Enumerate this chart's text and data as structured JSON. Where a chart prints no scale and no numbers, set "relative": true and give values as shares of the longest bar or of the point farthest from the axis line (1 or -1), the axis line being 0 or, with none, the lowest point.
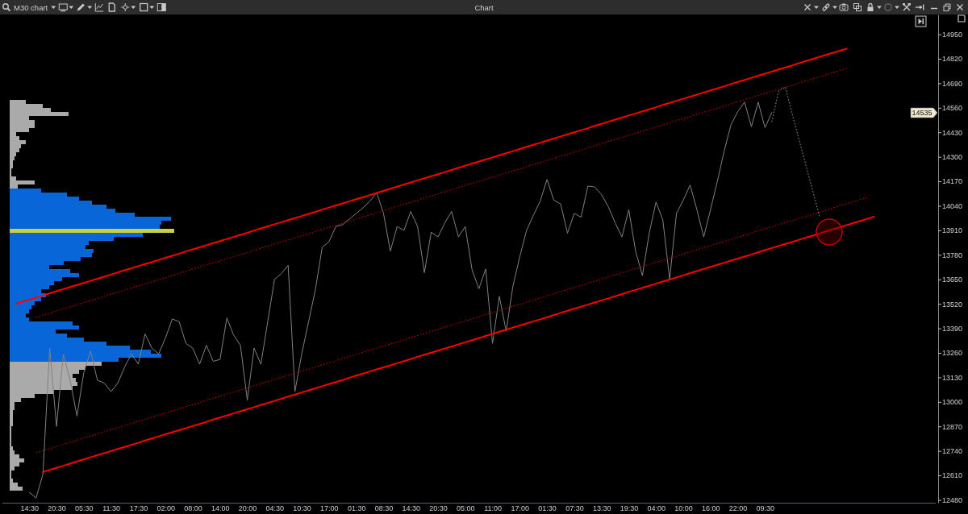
{
  "chart_data": [
    {
      "type": "line",
      "title": "Chart",
      "subtitle": "M30 chart",
      "categories": [
        null,
        null,
        null,
        null,
        "14:30",
        null,
        null,
        null,
        "20:30",
        null,
        null,
        null,
        "05:30",
        null,
        null,
        null,
        "11:30",
        null,
        null,
        null,
        "17:30",
        null,
        null,
        null,
        "02:00",
        null,
        null,
        null,
        "08:00",
        null,
        null,
        null,
        "14:00",
        null,
        null,
        null,
        "20:00",
        null,
        null,
        null,
        "04:30",
        null,
        null,
        null,
        "10:30",
        null,
        null,
        null,
        "17:00",
        null,
        null,
        null,
        "01:30",
        null,
        null,
        null,
        "08:30",
        null,
        null,
        null,
        "14:30",
        null,
        null,
        null,
        "20:30",
        null,
        null,
        null,
        "05:00",
        null,
        null,
        null,
        "11:00",
        null,
        null,
        null,
        "17:00",
        null,
        null,
        null,
        "01:30",
        null,
        null,
        null,
        "07:30",
        null,
        null,
        null,
        "13:30",
        null,
        null,
        null,
        "19:30",
        null,
        null,
        null,
        "04:00",
        null,
        null,
        null,
        "10:00",
        null,
        null,
        null,
        "16:00",
        null,
        null,
        null,
        "22:00",
        null,
        null,
        null,
        "09:30",
        null,
        null,
        null,
        null,
        null,
        null,
        null,
        null,
        null,
        null,
        null,
        null,
        null,
        null,
        null,
        null,
        null,
        null,
        null,
        null,
        null,
        null,
        null,
        null,
        null
      ],
      "ylim": [
        12465,
        15055
      ],
      "yticks": [
        12480,
        12610,
        12740,
        12870,
        13000,
        13130,
        13260,
        13390,
        13520,
        13650,
        13780,
        13910,
        14040,
        14170,
        14300,
        14430,
        14560,
        14690,
        14820,
        14950
      ],
      "series": [
        {
          "color": "#808080",
          "values": [
            null,
            null,
            null,
            null,
            12520,
            12490,
            12615,
            13285,
            12870,
            13255,
            13115,
            12925,
            13155,
            13270,
            13115,
            13100,
            13055,
            13100,
            13185,
            13255,
            13200,
            13360,
            13285,
            13255,
            13340,
            13440,
            13425,
            13310,
            13285,
            13200,
            13300,
            13215,
            13225,
            13445,
            13355,
            13300,
            13010,
            13285,
            13200,
            13425,
            13650,
            13680,
            13725,
            13055,
            13255,
            13425,
            13595,
            13820,
            13850,
            13930,
            13940,
            13970,
            14000,
            14030,
            14065,
            14110,
            14000,
            13800,
            13930,
            13910,
            14010,
            13930,
            13685,
            13900,
            13875,
            13950,
            14010,
            13875,
            13930,
            13700,
            13600,
            13705,
            13310,
            13560,
            13375,
            13615,
            13770,
            13910,
            13990,
            14065,
            14180,
            14070,
            14050,
            13895,
            14000,
            13980,
            14145,
            14140,
            14100,
            14035,
            13950,
            13875,
            14020,
            13800,
            13670,
            13895,
            14060,
            13965,
            13650,
            14000,
            14070,
            14150,
            14020,
            13875,
            14020,
            14170,
            14330,
            14470,
            14540,
            14590,
            14460,
            14590,
            14455,
            14535,
            null,
            null,
            null,
            null,
            null,
            null,
            null,
            null,
            null,
            null,
            null,
            null,
            null,
            null,
            null,
            null,
            null,
            null,
            null,
            null,
            null,
            null,
            null,
            null
          ]
        },
        {
          "color": "#ff0000",
          "line_style": "solid",
          "values": [
            null,
            null,
            13520,
            13531,
            13542,
            13553,
            13564,
            13576,
            13587,
            13598,
            13609,
            13620,
            13631,
            13642,
            13653,
            13664,
            13675,
            13687,
            13698,
            13709,
            13720,
            13731,
            13742,
            13753,
            13764,
            13775,
            13786,
            13798,
            13809,
            13820,
            13831,
            13842,
            13853,
            13864,
            13875,
            13886,
            13897,
            13909,
            13920,
            13931,
            13942,
            13953,
            13964,
            13975,
            13986,
            13997,
            14008,
            14020,
            14031,
            14042,
            14053,
            14064,
            14075,
            14086,
            14097,
            14108,
            14119,
            14131,
            14142,
            14153,
            14164,
            14175,
            14186,
            14197,
            14208,
            14219,
            14230,
            14242,
            14253,
            14264,
            14275,
            14286,
            14297,
            14308,
            14319,
            14330,
            14341,
            14353,
            14364,
            14375,
            14386,
            14397,
            14408,
            14419,
            14430,
            14441,
            14452,
            14464,
            14475,
            14486,
            14497,
            14508,
            14519,
            14530,
            14541,
            14552,
            14563,
            14575,
            14586,
            14597,
            14608,
            14619,
            14630,
            14641,
            14652,
            14663,
            14674,
            14686,
            14697,
            14708,
            14719,
            14730,
            14741,
            14752,
            14763,
            14774,
            14785,
            14797,
            14808,
            14819,
            14830,
            14841,
            14852,
            14863,
            14874,
            null,
            null,
            null,
            null,
            null,
            null,
            null,
            null,
            null,
            null,
            null,
            null,
            null
          ]
        },
        {
          "color": "#c00000",
          "line_style": "dotted",
          "values": [
            null,
            null,
            null,
            null,
            null,
            13448,
            13459,
            13471,
            13482,
            13493,
            13504,
            13515,
            13526,
            13537,
            13548,
            13559,
            13570,
            13582,
            13593,
            13604,
            13615,
            13626,
            13637,
            13648,
            13659,
            13670,
            13681,
            13693,
            13704,
            13715,
            13726,
            13737,
            13748,
            13759,
            13770,
            13781,
            13792,
            13804,
            13815,
            13826,
            13837,
            13848,
            13859,
            13870,
            13881,
            13892,
            13903,
            13915,
            13926,
            13937,
            13948,
            13959,
            13970,
            13981,
            13992,
            14003,
            14014,
            14026,
            14037,
            14048,
            14059,
            14070,
            14081,
            14092,
            14103,
            14114,
            14125,
            14137,
            14148,
            14159,
            14170,
            14181,
            14192,
            14203,
            14214,
            14225,
            14236,
            14248,
            14259,
            14270,
            14281,
            14292,
            14303,
            14314,
            14325,
            14336,
            14347,
            14359,
            14370,
            14381,
            14392,
            14403,
            14414,
            14425,
            14436,
            14447,
            14458,
            14470,
            14481,
            14492,
            14503,
            14514,
            14525,
            14536,
            14547,
            14558,
            14569,
            14581,
            14592,
            14603,
            14614,
            14625,
            14636,
            14647,
            14658,
            14669,
            14680,
            14692,
            14703,
            14714,
            14725,
            14736,
            14747,
            14758,
            14769,
            null,
            null,
            null,
            null,
            null,
            null,
            null,
            null,
            null,
            null,
            null,
            null,
            null
          ]
        },
        {
          "color": "#c00000",
          "line_style": "dotted",
          "values": [
            null,
            null,
            null,
            null,
            null,
            12730,
            12741,
            12752,
            12763,
            12774,
            12786,
            12797,
            12808,
            12819,
            12830,
            12841,
            12852,
            12863,
            12874,
            12885,
            12897,
            12908,
            12919,
            12930,
            12941,
            12952,
            12963,
            12974,
            12985,
            12996,
            13008,
            13019,
            13030,
            13041,
            13052,
            13063,
            13074,
            13085,
            13096,
            13107,
            13119,
            13130,
            13141,
            13152,
            13163,
            13174,
            13185,
            13196,
            13207,
            13218,
            13230,
            13241,
            13252,
            13263,
            13274,
            13285,
            13296,
            13307,
            13318,
            13329,
            13341,
            13352,
            13363,
            13374,
            13385,
            13396,
            13407,
            13418,
            13429,
            13440,
            13452,
            13463,
            13474,
            13485,
            13496,
            13507,
            13518,
            13529,
            13540,
            13551,
            13563,
            13574,
            13585,
            13596,
            13607,
            13618,
            13629,
            13640,
            13651,
            13662,
            13674,
            13685,
            13696,
            13707,
            13718,
            13729,
            13740,
            13751,
            13762,
            13773,
            13785,
            13796,
            13807,
            13818,
            13829,
            13840,
            13851,
            13862,
            13873,
            13884,
            13896,
            13907,
            13918,
            13929,
            13940,
            13951,
            13962,
            13973,
            13984,
            13995,
            14007,
            14018,
            14029,
            14040,
            14051,
            14062,
            14073,
            14084,
            null,
            null,
            null,
            null,
            null,
            null,
            null,
            null,
            null,
            null
          ]
        },
        {
          "color": "#ff0000",
          "line_style": "solid",
          "values": [
            null,
            null,
            null,
            null,
            null,
            null,
            12628,
            12639,
            12650,
            12661,
            12672,
            12684,
            12695,
            12706,
            12717,
            12728,
            12739,
            12750,
            12761,
            12772,
            12783,
            12795,
            12806,
            12817,
            12828,
            12839,
            12850,
            12861,
            12872,
            12883,
            12894,
            12906,
            12917,
            12928,
            12939,
            12950,
            12961,
            12972,
            12983,
            12994,
            13005,
            13017,
            13028,
            13039,
            13050,
            13061,
            13072,
            13083,
            13094,
            13105,
            13116,
            13128,
            13139,
            13150,
            13161,
            13172,
            13183,
            13194,
            13205,
            13216,
            13227,
            13239,
            13250,
            13261,
            13272,
            13283,
            13294,
            13305,
            13316,
            13327,
            13338,
            13350,
            13361,
            13372,
            13383,
            13394,
            13405,
            13416,
            13427,
            13438,
            13449,
            13461,
            13472,
            13483,
            13494,
            13505,
            13516,
            13527,
            13538,
            13549,
            13560,
            13572,
            13583,
            13594,
            13605,
            13616,
            13627,
            13638,
            13649,
            13660,
            13671,
            13683,
            13694,
            13705,
            13716,
            13727,
            13738,
            13749,
            13760,
            13771,
            13782,
            13794,
            13805,
            13816,
            13827,
            13838,
            13849,
            13860,
            13871,
            13882,
            13893,
            13905,
            13916,
            13927,
            13938,
            13949,
            13960,
            13971,
            13982,
            null,
            null,
            null,
            null,
            null,
            null,
            null,
            null,
            null
          ]
        },
        {
          "color": "#8c8c8c",
          "line_style": "dotted",
          "values": [
            null,
            null,
            null,
            null,
            null,
            null,
            null,
            null,
            null,
            null,
            null,
            null,
            null,
            null,
            null,
            null,
            null,
            null,
            null,
            null,
            null,
            null,
            null,
            null,
            null,
            null,
            null,
            null,
            null,
            null,
            null,
            null,
            null,
            null,
            null,
            null,
            null,
            null,
            null,
            null,
            null,
            null,
            null,
            null,
            null,
            null,
            null,
            null,
            null,
            null,
            null,
            null,
            null,
            null,
            null,
            null,
            null,
            null,
            null,
            null,
            null,
            null,
            null,
            null,
            null,
            null,
            null,
            null,
            null,
            null,
            null,
            null,
            null,
            null,
            null,
            null,
            null,
            null,
            null,
            null,
            null,
            null,
            null,
            null,
            null,
            null,
            null,
            null,
            null,
            null,
            null,
            null,
            null,
            null,
            null,
            null,
            null,
            null,
            null,
            null,
            null,
            null,
            null,
            null,
            null,
            null,
            null,
            null,
            null,
            null,
            null,
            null,
            null,
            14485,
            14650,
            14670,
            14525,
            14390,
            14255,
            14120,
            13985,
            null,
            null,
            null,
            null,
            null,
            null,
            null,
            null,
            null,
            null,
            null,
            null,
            null,
            null,
            null,
            null,
            null
          ]
        }
      ],
      "annotations": [
        "14535"
      ]
    },
    {
      "type": "bar",
      "orientation": "horizontal",
      "relative": true,
      "categories": [
        null,
        null,
        null,
        null,
        null,
        null,
        null,
        null,
        null,
        null,
        null,
        null,
        null,
        null,
        null,
        null,
        null,
        null,
        null,
        null,
        null,
        null,
        null,
        null,
        null,
        null,
        null,
        null,
        null,
        null,
        null,
        null,
        null,
        null,
        null,
        null,
        null,
        null,
        null,
        null,
        null,
        null,
        null,
        null,
        null,
        null,
        null,
        null,
        null,
        null,
        null,
        null,
        null,
        null,
        null,
        null,
        null,
        null,
        null,
        null,
        null,
        null,
        null,
        null,
        null,
        null,
        null,
        null,
        null,
        null,
        null,
        null,
        null,
        null,
        null,
        null,
        null,
        null,
        null,
        null,
        null,
        null,
        null,
        null,
        null,
        null,
        null,
        null,
        null,
        null,
        null,
        null,
        null,
        null,
        null,
        null,
        null
      ],
      "values": [
        0.1,
        0.2,
        0.25,
        0.36,
        0.12,
        0.15,
        0.15,
        0.12,
        0.04,
        0.06,
        0.1,
        0.07,
        0.06,
        0.04,
        0.03,
        0.02,
        0.02,
        0.01,
        0.01,
        0.04,
        0.15,
        0.05,
        0.19,
        0.35,
        0.42,
        0.5,
        0.59,
        0.64,
        0.76,
        0.98,
        0.92,
        0.91,
        1,
        0.81,
        0.63,
        0.48,
        0.46,
        0.51,
        0.5,
        0.43,
        0.33,
        0.24,
        0.37,
        0.42,
        0.32,
        0.27,
        0.24,
        0.19,
        0.22,
        0.19,
        0.15,
        0.13,
        0.12,
        0.1,
        0.12,
        0.38,
        0.42,
        0.28,
        0.35,
        0.45,
        0.59,
        0.73,
        0.86,
        0.92,
        0.66,
        0.56,
        0.46,
        0.42,
        0.38,
        0.4,
        0.41,
        0.38,
        0.27,
        0.15,
        0.07,
        0.03,
        0.03,
        0.02,
        0.02,
        0.02,
        0.02,
        0.01,
        0.01,
        0.01,
        0.01,
        0.01,
        0.02,
        0.03,
        0.06,
        0.09,
        0.06,
        0.03,
        0.01,
        0.01,
        0.02,
        0.05,
        0.08
      ],
      "colors": [
        "#aaaaaa",
        "#aaaaaa",
        "#aaaaaa",
        "#aaaaaa",
        "#aaaaaa",
        "#aaaaaa",
        "#aaaaaa",
        "#aaaaaa",
        "#aaaaaa",
        "#aaaaaa",
        "#aaaaaa",
        "#aaaaaa",
        "#aaaaaa",
        "#aaaaaa",
        "#aaaaaa",
        "#aaaaaa",
        "#aaaaaa",
        "#aaaaaa",
        "#aaaaaa",
        "#aaaaaa",
        "#aaaaaa",
        "#aaaaaa",
        "#0866d8",
        "#0866d8",
        "#0866d8",
        "#0866d8",
        "#0866d8",
        "#0866d8",
        "#0866d8",
        "#0866d8",
        "#0866d8",
        "#0866d8",
        "#c8d040",
        "#0866d8",
        "#0866d8",
        "#0866d8",
        "#0866d8",
        "#0866d8",
        "#0866d8",
        "#0866d8",
        "#0866d8",
        "#0866d8",
        "#0866d8",
        "#0866d8",
        "#0866d8",
        "#0866d8",
        "#0866d8",
        "#0866d8",
        "#0866d8",
        "#0866d8",
        "#0866d8",
        "#0866d8",
        "#0866d8",
        "#0866d8",
        "#0866d8",
        "#0866d8",
        "#0866d8",
        "#0866d8",
        "#0866d8",
        "#0866d8",
        "#0866d8",
        "#0866d8",
        "#0866d8",
        "#0866d8",
        "#0866d8",
        "#aaaaaa",
        "#aaaaaa",
        "#aaaaaa",
        "#aaaaaa",
        "#aaaaaa",
        "#aaaaaa",
        "#aaaaaa",
        "#aaaaaa",
        "#aaaaaa",
        "#aaaaaa",
        "#aaaaaa",
        "#aaaaaa",
        "#aaaaaa",
        "#aaaaaa",
        "#aaaaaa",
        "#aaaaaa",
        "#aaaaaa",
        "#aaaaaa",
        "#aaaaaa",
        "#aaaaaa",
        "#aaaaaa",
        "#aaaaaa",
        "#aaaaaa",
        "#aaaaaa",
        "#aaaaaa",
        "#aaaaaa",
        "#aaaaaa",
        "#aaaaaa",
        "#aaaaaa",
        "#aaaaaa",
        "#aaaaaa",
        "#aaaaaa"
      ]
    }
  ]
}
